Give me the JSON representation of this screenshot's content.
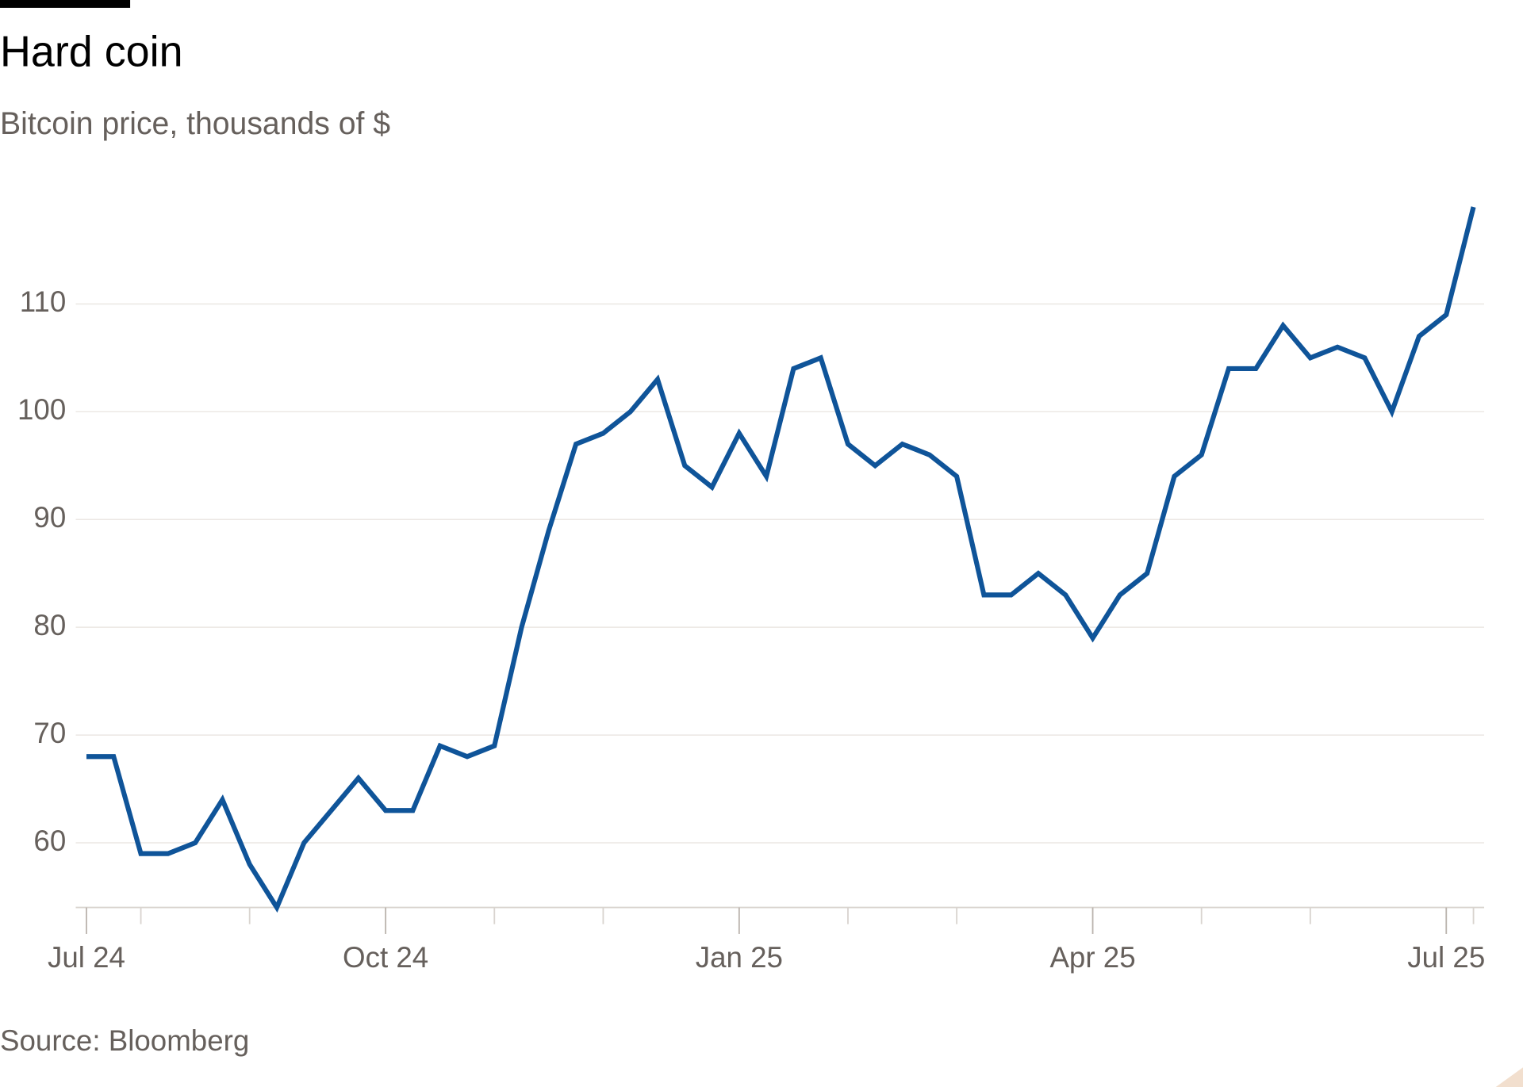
{
  "chart_data": {
    "type": "line",
    "title": "Hard coin",
    "subtitle": "Bitcoin price, thousands of $",
    "source": "Source: Bloomberg",
    "categories": [
      "Jul 24",
      null,
      null,
      null,
      null,
      null,
      null,
      null,
      null,
      null,
      null,
      "Oct 24",
      null,
      null,
      null,
      null,
      null,
      null,
      null,
      null,
      null,
      null,
      null,
      null,
      "Jan 25",
      null,
      null,
      null,
      null,
      null,
      null,
      null,
      null,
      null,
      null,
      null,
      null,
      "Apr 25",
      null,
      null,
      null,
      null,
      null,
      null,
      null,
      null,
      null,
      null,
      null,
      null,
      "Jul 25",
      null
    ],
    "values": [
      68,
      68,
      59,
      59,
      60,
      64,
      58,
      54,
      60,
      63,
      66,
      63,
      63,
      69,
      68,
      69,
      80,
      89,
      97,
      98,
      100,
      103,
      95,
      93,
      98,
      94,
      104,
      105,
      97,
      95,
      97,
      96,
      94,
      83,
      83,
      85,
      83,
      79,
      83,
      85,
      94,
      96,
      104,
      104,
      108,
      105,
      106,
      105,
      100,
      107,
      109,
      119
    ],
    "color": "#0f5499",
    "ylim": [
      54,
      120
    ],
    "yticks": [
      60,
      70,
      80,
      90,
      100,
      110
    ],
    "grid": true
  }
}
